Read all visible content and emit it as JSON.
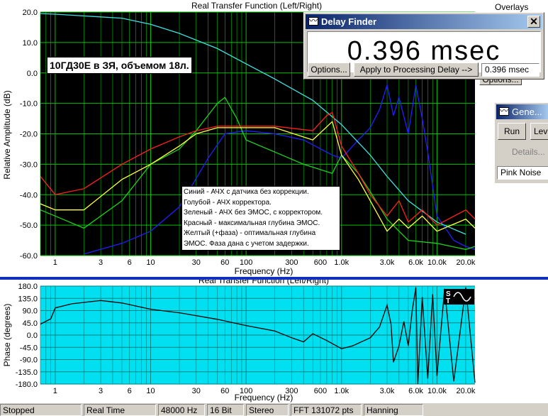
{
  "top_plot": {
    "window_title": "Real Transfer Function (Left/Right)",
    "overlay_text": "10ГД30Е в ЗЯ, объемом 18л.",
    "ylabel": "Relative Amplitude (dB)",
    "xlabel": "Frequency (Hz)",
    "y_ticks": [
      "20.0",
      "10.0",
      "0.0",
      "-10.0",
      "-20.0",
      "-30.0",
      "-40.0",
      "-50.0",
      "-60.0"
    ],
    "x_ticks": [
      "1",
      "3",
      "6",
      "10",
      "30",
      "60",
      "100",
      "300",
      "600",
      "1.0k",
      "3.0k",
      "6.0k",
      "10.0k",
      "20.0k"
    ],
    "legend": [
      "Синий - АЧХ с датчика без коррекции.",
      "Голубой - АЧХ корректора.",
      "Зеленый - АЧХ без ЭМОС, с корректором.",
      "Красный - максимальная глубина ЭМОС.",
      "Желтый (+фаза) - оптимальная глубина",
      "ЭМОС. Фаза дана с учетом задержки."
    ],
    "colors": {
      "background": "#000000",
      "grid": "#00c000",
      "blue": "#2020ff",
      "cyan": "#40e0e0",
      "green": "#20d020",
      "red": "#ff2020",
      "yellow": "#ffff40"
    }
  },
  "overlays_label": "Overlays",
  "delay_finder": {
    "title": "Delay Finder",
    "readout": "0.396 msec",
    "options_label": "Options...",
    "apply_label": "Apply to Processing Delay -->",
    "value_field": "0.396 msec"
  },
  "hidden_options_label": "Options...",
  "generator": {
    "title": "Gene...",
    "run_label": "Run",
    "level_label": "Lev",
    "details_label": "Details...",
    "signal": "Pink Noise"
  },
  "bottom_plot": {
    "window_title": "Real Transfer Function (Left/Right)",
    "ylabel": "Phase (degrees)",
    "xlabel": "Frequency (Hz)",
    "y_ticks": [
      "180.0",
      "135.0",
      "90.0",
      "45.0",
      "0.0",
      "-45.0",
      "-90.0",
      "-135.0",
      "-180.0"
    ],
    "x_ticks": [
      "1",
      "3",
      "6",
      "10",
      "30",
      "60",
      "100",
      "300",
      "600",
      "1.0k",
      "3.0k",
      "6.0k",
      "10.0k",
      "20.0k"
    ],
    "colors": {
      "background": "#00e0f0",
      "grid": "#008080",
      "trace": "#000000"
    }
  },
  "status_bar": {
    "state": "Stopped",
    "mode": "Real Time",
    "rate": "48000 Hz",
    "bits": "16 Bit",
    "channels": "Stereo",
    "fft": "FFT 131072 pts",
    "window": "Hanning"
  },
  "chart_data": [
    {
      "type": "line",
      "title": "Real Transfer Function (Left/Right)",
      "xlabel": "Frequency (Hz)",
      "ylabel": "Relative Amplitude (dB)",
      "x_scale": "log",
      "xlim": [
        0.7,
        25000
      ],
      "ylim": [
        -60,
        20
      ],
      "grid": true,
      "series": [
        {
          "color": "blue",
          "x": [
            2,
            5,
            10,
            20,
            40,
            60,
            100,
            200,
            400,
            800,
            1000,
            1500,
            2000,
            2500,
            3000,
            3500,
            4000,
            5000,
            6000,
            7000,
            8000,
            10000,
            15000,
            20000,
            25000
          ],
          "y": [
            -59.5,
            -56,
            -52,
            -44,
            -28,
            -20,
            -19,
            -20,
            -22,
            -27,
            -28,
            -22,
            -18,
            -12,
            -4,
            -14,
            -8,
            -20,
            -4,
            -15,
            -26,
            -47,
            -55,
            -57,
            -58
          ]
        },
        {
          "color": "cyan",
          "x": [
            0.7,
            1,
            5,
            10,
            20,
            50,
            100,
            200,
            500,
            1000,
            2000,
            3000,
            5000,
            10000,
            20000
          ],
          "y": [
            19.5,
            19.3,
            18,
            16,
            13,
            8,
            3,
            -2,
            -9,
            -17,
            -27,
            -34,
            -42,
            -49,
            -53
          ]
        },
        {
          "color": "green",
          "x": [
            0.7,
            1,
            2,
            5,
            10,
            20,
            30,
            50,
            60,
            80,
            100,
            200,
            400,
            800,
            1000,
            1500,
            2000,
            3000,
            4000,
            5000,
            10000,
            20000,
            25000
          ],
          "y": [
            -45,
            -47,
            -51,
            -42,
            -30,
            -25,
            -19,
            -10,
            -8,
            -15,
            -22,
            -26,
            -30,
            -33,
            -27,
            -33,
            -39,
            -48,
            -52,
            -55,
            -56,
            -58,
            -57
          ]
        },
        {
          "color": "red",
          "x": [
            0.7,
            1,
            2,
            5,
            10,
            20,
            30,
            50,
            100,
            200,
            500,
            700,
            800,
            1000,
            1500,
            2000,
            3000,
            4000,
            5000,
            7000,
            10000,
            20000,
            25000
          ],
          "y": [
            -34,
            -40,
            -38,
            -30,
            -25,
            -21,
            -19,
            -17.5,
            -17.5,
            -17.5,
            -19,
            -14,
            -13,
            -24,
            -33,
            -40,
            -47,
            -42,
            -49,
            -45,
            -50,
            -45,
            -48
          ]
        },
        {
          "color": "yellow",
          "x": [
            0.7,
            1,
            2,
            5,
            10,
            20,
            30,
            50,
            100,
            200,
            500,
            800,
            1000,
            1500,
            2000,
            3000,
            4000,
            5000,
            7000,
            10000,
            20000,
            25000
          ],
          "y": [
            -43,
            -45,
            -45,
            -35,
            -30,
            -24,
            -20,
            -18,
            -18,
            -18,
            -22,
            -16,
            -27,
            -35,
            -42,
            -52,
            -48,
            -51,
            -47,
            -52,
            -48,
            -51
          ]
        }
      ]
    },
    {
      "type": "line",
      "title": "Real Transfer Function (Left/Right)",
      "xlabel": "Frequency (Hz)",
      "ylabel": "Phase (degrees)",
      "x_scale": "log",
      "xlim": [
        0.7,
        25000
      ],
      "ylim": [
        -180,
        180
      ],
      "grid": true,
      "series": [
        {
          "color": "black",
          "x": [
            0.7,
            0.9,
            1,
            1.5,
            2,
            3,
            5,
            10,
            20,
            50,
            100,
            200,
            300,
            400,
            500,
            700,
            1000,
            1300,
            2000,
            2500,
            3000,
            3300,
            3500,
            4000,
            4500,
            5000,
            5500,
            6000,
            6300,
            7000,
            8000,
            9000,
            10000,
            12000,
            15000,
            20000,
            25000
          ],
          "y": [
            40,
            60,
            100,
            115,
            120,
            127,
            118,
            95,
            82,
            58,
            35,
            15,
            -10,
            -25,
            5,
            -20,
            -50,
            -40,
            -10,
            30,
            110,
            40,
            -100,
            -40,
            50,
            -40,
            90,
            175,
            -180,
            140,
            -160,
            150,
            -150,
            170,
            -170,
            175,
            -175
          ]
        }
      ]
    }
  ]
}
